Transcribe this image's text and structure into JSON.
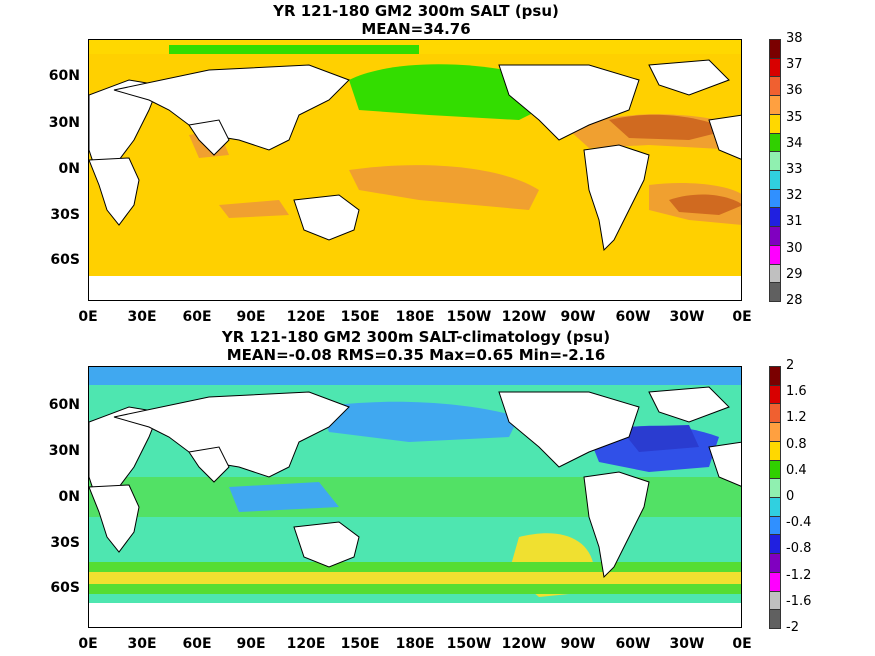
{
  "chart_data": [
    {
      "type": "heatmap",
      "title": "YR 121-180 GM2 300m SALT (psu)",
      "subtitle": "MEAN=34.76",
      "lat_ticks": [
        "60N",
        "30N",
        "0N",
        "30S",
        "60S"
      ],
      "lat_values": [
        60,
        30,
        0,
        -30,
        -60
      ],
      "lon_ticks": [
        "0E",
        "30E",
        "60E",
        "90E",
        "120E",
        "150E",
        "180E",
        "150W",
        "120W",
        "90W",
        "60W",
        "30W",
        "0E"
      ],
      "colorbar_labels": [
        "38",
        "37",
        "36",
        "35",
        "34",
        "33",
        "32",
        "31",
        "30",
        "29",
        "28"
      ],
      "colorbar_colors": [
        "#7a0000",
        "#d80000",
        "#f06030",
        "#ffa040",
        "#ffd800",
        "#30d000",
        "#90f0b0",
        "#30d0e0",
        "#3090ff",
        "#2020e0",
        "#8000c0",
        "#ff00ff",
        "#c0c0c0",
        "#606060"
      ],
      "colors": {
        "ocean": "#ffd000",
        "high": "#f0a030",
        "higher": "#d06a20",
        "low": "#33dd00",
        "land": "#ffffff"
      }
    },
    {
      "type": "heatmap",
      "title": "YR 121-180 GM2 300m SALT-climatology (psu)",
      "subtitle": "MEAN=-0.08   RMS=0.35   Max=0.65   Min=-2.16",
      "lat_ticks": [
        "60N",
        "30N",
        "0N",
        "30S",
        "60S"
      ],
      "lat_values": [
        60,
        30,
        0,
        -30,
        -60
      ],
      "lon_ticks": [
        "0E",
        "30E",
        "60E",
        "90E",
        "120E",
        "150E",
        "180E",
        "150W",
        "120W",
        "90W",
        "60W",
        "30W",
        "0E"
      ],
      "colorbar_labels": [
        "2",
        "1.6",
        "1.2",
        "0.8",
        "0.4",
        "0",
        "-0.4",
        "-0.8",
        "-1.2",
        "-1.6",
        "-2"
      ],
      "colorbar_colors": [
        "#7a0000",
        "#d80000",
        "#f06030",
        "#ffa040",
        "#ffd800",
        "#30d000",
        "#90f0b0",
        "#30d0e0",
        "#3090ff",
        "#2020e0",
        "#8000c0",
        "#ff00ff",
        "#c0c0c0",
        "#606060"
      ],
      "colors": {
        "ocean": "#4ee6b0",
        "green": "#55dd33",
        "blue": "#40a8f0",
        "deep": "#3050e8",
        "yellow": "#f0e030",
        "land": "#ffffff"
      }
    }
  ]
}
